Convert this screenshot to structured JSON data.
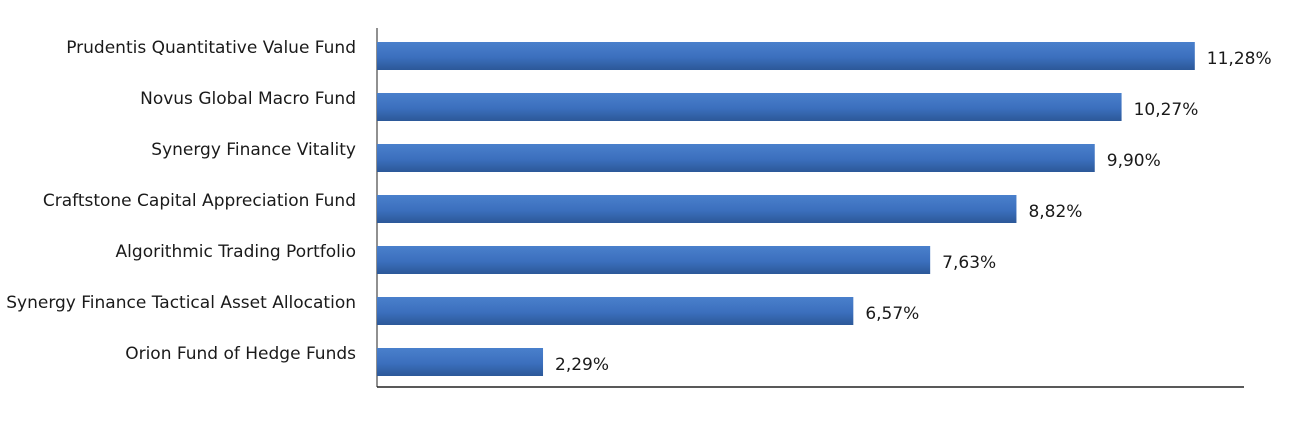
{
  "chart_data": {
    "type": "bar",
    "orientation": "horizontal",
    "title": "",
    "xlabel": "",
    "ylabel": "",
    "categories": [
      "Prudentis Quantitative Value Fund",
      "Novus Global Macro Fund",
      "Synergy Finance Vitality",
      "Craftstone Capital Appreciation Fund",
      "Algorithmic Trading Portfolio",
      "Synergy Finance Tactical Asset Allocation",
      "Orion Fund of Hedge Funds"
    ],
    "values": [
      11.28,
      10.27,
      9.9,
      8.82,
      7.63,
      6.57,
      2.29
    ],
    "value_labels": [
      "11,28%",
      "10,27%",
      "9,90%",
      "8,82%",
      "7,63%",
      "6,57%",
      "2,29%"
    ],
    "xlim": [
      0,
      12
    ],
    "grid": false,
    "legend": "none",
    "bar_color": "#3f72b8"
  }
}
